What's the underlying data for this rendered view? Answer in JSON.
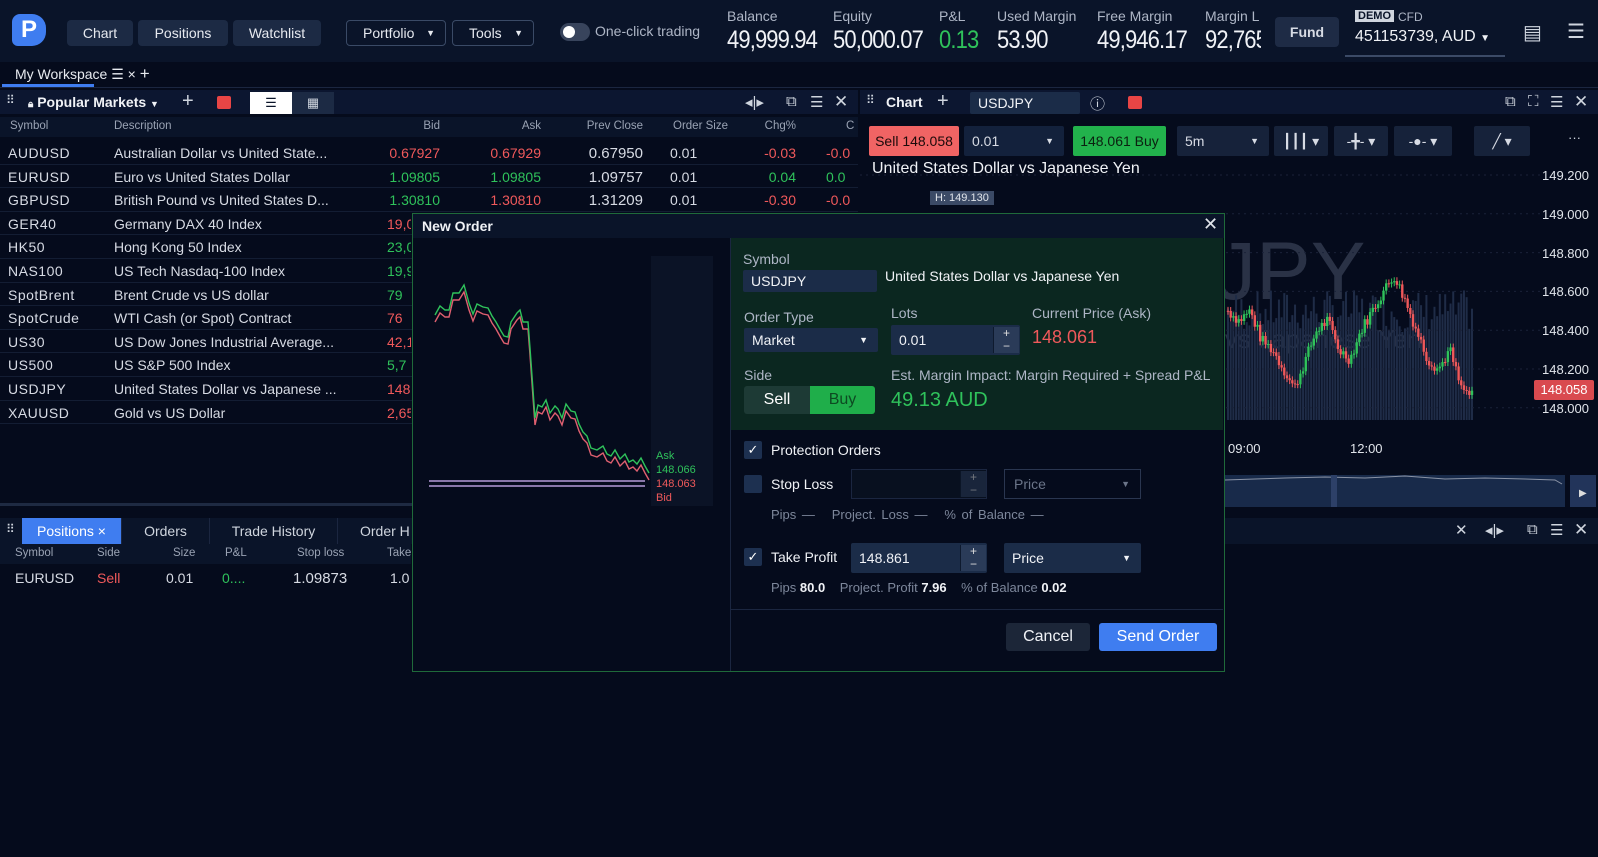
{
  "topbar": {
    "nav": [
      "Chart",
      "Positions",
      "Watchlist"
    ],
    "portfolio": "Portfolio",
    "tools": "Tools",
    "one_click": "One-click trading",
    "stats": [
      {
        "label": "Balance",
        "value": "49,999.94"
      },
      {
        "label": "Equity",
        "value": "50,000.07"
      },
      {
        "label": "P&L",
        "value": "0.13"
      },
      {
        "label": "Used Margin",
        "value": "53.90"
      },
      {
        "label": "Free Margin",
        "value": "49,946.17"
      },
      {
        "label": "Margin L",
        "value": "92,765"
      }
    ],
    "fund": "Fund",
    "demo": "DEMO",
    "cfd": "CFD",
    "account": "451153739, AUD"
  },
  "workspace": {
    "tab": "My Workspace"
  },
  "markets": {
    "title": "Popular Markets",
    "columns": [
      "Symbol",
      "Description",
      "Bid",
      "Ask",
      "Prev Close",
      "Order Size",
      "Chg%",
      "C"
    ],
    "rows": [
      {
        "symbol": "AUDUSD",
        "desc": "Australian Dollar vs United State...",
        "bid": "0.67927",
        "ask": "0.67929",
        "prev": "0.67950",
        "size": "0.01",
        "chg": "-0.03",
        "c": "-0.0",
        "dir": "red",
        "askdir": "red",
        "chgdir": "red"
      },
      {
        "symbol": "EURUSD",
        "desc": "Euro vs United States Dollar",
        "bid": "1.09805",
        "ask": "1.09805",
        "prev": "1.09757",
        "size": "0.01",
        "chg": "0.04",
        "c": "0.0",
        "dir": "green",
        "askdir": "green",
        "chgdir": "green"
      },
      {
        "symbol": "GBPUSD",
        "desc": "British Pound vs United States D...",
        "bid": "1.30810",
        "ask": "1.30810",
        "prev": "1.31209",
        "size": "0.01",
        "chg": "-0.30",
        "c": "-0.0",
        "dir": "green",
        "askdir": "red",
        "chgdir": "red"
      },
      {
        "symbol": "GER40",
        "desc": "Germany DAX 40 Index",
        "bid": "19,0",
        "dir": "red"
      },
      {
        "symbol": "HK50",
        "desc": "Hong Kong 50 Index",
        "bid": "23,0",
        "dir": "green"
      },
      {
        "symbol": "NAS100",
        "desc": "US Tech Nasdaq-100 Index",
        "bid": "19,9",
        "dir": "green"
      },
      {
        "symbol": "SpotBrent",
        "desc": "Brent Crude vs US dollar",
        "bid": "79",
        "dir": "green"
      },
      {
        "symbol": "SpotCrude",
        "desc": "WTI Cash (or Spot) Contract",
        "bid": "76",
        "dir": "red"
      },
      {
        "symbol": "US30",
        "desc": "US Dow Jones Industrial Average...",
        "bid": "42,1",
        "dir": "red"
      },
      {
        "symbol": "US500",
        "desc": "US S&P 500 Index",
        "bid": "5,7",
        "dir": "green"
      },
      {
        "symbol": "USDJPY",
        "desc": "United States Dollar vs Japanese ...",
        "bid": "148",
        "dir": "red"
      },
      {
        "symbol": "XAUUSD",
        "desc": "Gold vs US Dollar",
        "bid": "2,65",
        "dir": "red"
      }
    ]
  },
  "chart": {
    "title": "Chart",
    "symbol": "USDJPY",
    "sell": "Sell 148.058",
    "lots": "0.01",
    "buy": "148.061 Buy",
    "timeframe": "5m",
    "description": "United States Dollar vs Japanese Yen",
    "high_label": "H: 149.130",
    "watermark": "JPY",
    "watermark_sub": "vs Japanese Yen",
    "price_ticks": [
      "149.200",
      "149.000",
      "148.800",
      "148.600",
      "148.400",
      "148.200",
      "148.000"
    ],
    "current_price": "148.058",
    "time_ticks": [
      "09:00",
      "12:00"
    ]
  },
  "positions": {
    "tabs": [
      "Positions",
      "Orders",
      "Trade History",
      "Order H"
    ],
    "columns": [
      "Symbol",
      "Side",
      "Size",
      "P&L",
      "Stop loss",
      "Take"
    ],
    "rows": [
      {
        "symbol": "EURUSD",
        "side": "Sell",
        "size": "0.01",
        "pl": "0....",
        "sl": "1.09873",
        "tp": "1.0"
      }
    ]
  },
  "order": {
    "title": "New Order",
    "symbol_label": "Symbol",
    "symbol": "USDJPY",
    "symbol_desc": "United States Dollar vs Japanese Yen",
    "order_type_label": "Order Type",
    "order_type": "Market",
    "lots_label": "Lots",
    "lots": "0.01",
    "price_label": "Current Price (Ask)",
    "price": "148.061",
    "side_label": "Side",
    "sell": "Sell",
    "buy": "Buy",
    "margin_label": "Est. Margin Impact: Margin Required + Spread P&L",
    "margin": "49.13 AUD",
    "protection": "Protection Orders",
    "stop_loss": "Stop Loss",
    "sl_mode": "Price",
    "sl_pips": "Pips —",
    "sl_loss": "Project. Loss —",
    "sl_balance": "% of Balance —",
    "take_profit": "Take Profit",
    "tp_value": "148.861",
    "tp_mode": "Price",
    "tp_pips_label": "Pips",
    "tp_pips": "80.0",
    "tp_profit_label": "Project. Profit",
    "tp_profit": "7.96",
    "tp_balance_label": "% of Balance",
    "tp_balance": "0.02",
    "cancel": "Cancel",
    "send": "Send Order",
    "mini_ask": "Ask",
    "mini_ask_price": "148.066",
    "mini_bid_price": "148.063",
    "mini_bid": "Bid"
  },
  "colors": {
    "bg": "#050b1c",
    "accent": "#3f7df0",
    "green": "#2fc25b",
    "red": "#f0595b"
  }
}
